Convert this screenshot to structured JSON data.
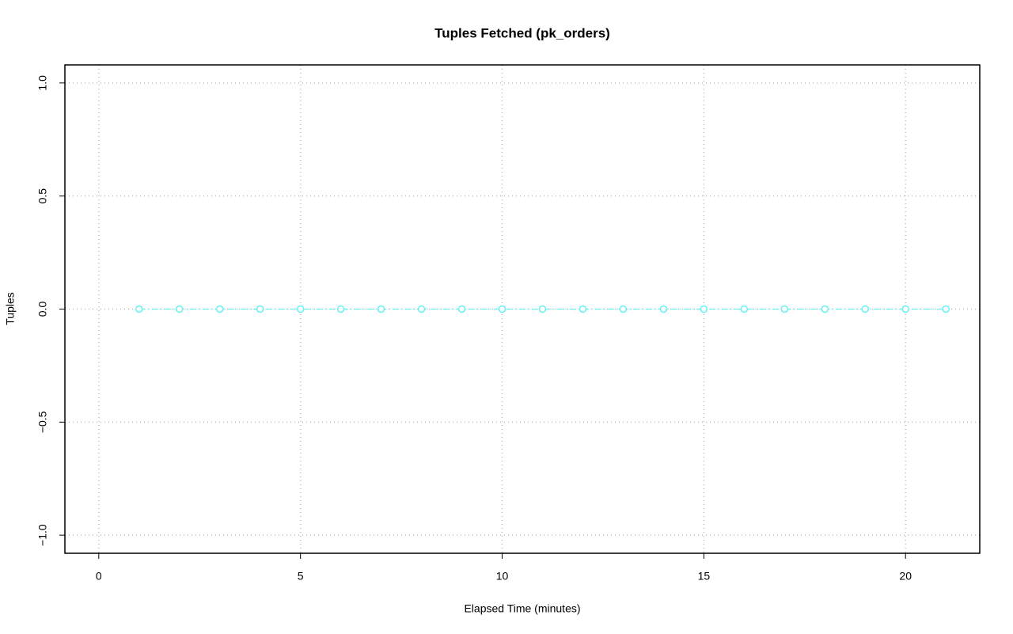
{
  "chart_data": {
    "type": "line",
    "title": "Tuples Fetched (pk_orders)",
    "x_label": "Elapsed Time (minutes)",
    "y_label": "Tuples",
    "x": [
      1,
      2,
      3,
      4,
      5,
      6,
      7,
      8,
      9,
      10,
      11,
      12,
      13,
      14,
      15,
      16,
      17,
      18,
      19,
      20,
      21
    ],
    "values": [
      0,
      0,
      0,
      0,
      0,
      0,
      0,
      0,
      0,
      0,
      0,
      0,
      0,
      0,
      0,
      0,
      0,
      0,
      0,
      0,
      0
    ],
    "color": "#66f2f2",
    "xlim": [
      -0.84,
      21.84
    ],
    "ylim": [
      -1.08,
      1.08
    ],
    "xticks": [
      0,
      5,
      10,
      15,
      20
    ],
    "yticks": [
      {
        "value": -1,
        "label": "−1.0"
      },
      {
        "value": -0.5,
        "label": "−0.5"
      },
      {
        "value": 0,
        "label": "0.0"
      },
      {
        "value": 0.5,
        "label": "0.5"
      },
      {
        "value": 1,
        "label": "1.0"
      }
    ],
    "grid": true
  }
}
